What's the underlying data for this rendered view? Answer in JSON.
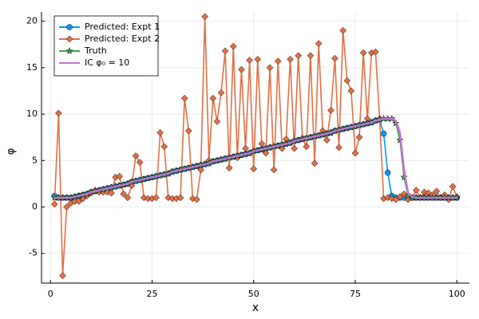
{
  "chart_data": {
    "type": "line",
    "x_label": "x",
    "y_label": "φ",
    "x": [
      1,
      2,
      3,
      4,
      5,
      6,
      7,
      8,
      9,
      10,
      11,
      12,
      13,
      14,
      15,
      16,
      17,
      18,
      19,
      20,
      21,
      22,
      23,
      24,
      25,
      26,
      27,
      28,
      29,
      30,
      31,
      32,
      33,
      34,
      35,
      36,
      37,
      38,
      39,
      40,
      41,
      42,
      43,
      44,
      45,
      46,
      47,
      48,
      49,
      50,
      51,
      52,
      53,
      54,
      55,
      56,
      57,
      58,
      59,
      60,
      61,
      62,
      63,
      64,
      65,
      66,
      67,
      68,
      69,
      70,
      71,
      72,
      73,
      74,
      75,
      76,
      77,
      78,
      79,
      80,
      81,
      82,
      83,
      84,
      85,
      86,
      87,
      88,
      89,
      90,
      91,
      92,
      93,
      94,
      95,
      96,
      97,
      98,
      99,
      100
    ],
    "series": [
      {
        "name": "Predicted: Expt 1",
        "color": "#009af9",
        "marker": "circle",
        "values": [
          1.2,
          1.0,
          1.0,
          1.0,
          1.0,
          1.1,
          1.2,
          1.3,
          1.4,
          1.6,
          1.7,
          1.8,
          1.9,
          2.0,
          2.1,
          2.2,
          2.3,
          2.4,
          2.5,
          2.7,
          2.8,
          2.9,
          3.0,
          3.1,
          3.2,
          3.3,
          3.4,
          3.5,
          3.6,
          3.8,
          3.9,
          4.0,
          4.1,
          4.2,
          4.3,
          4.4,
          4.5,
          4.6,
          4.7,
          4.9,
          5.0,
          5.1,
          5.2,
          5.3,
          5.4,
          5.5,
          5.6,
          5.7,
          5.8,
          6.0,
          6.1,
          6.2,
          6.3,
          6.4,
          6.5,
          6.6,
          6.7,
          6.8,
          6.9,
          7.1,
          7.2,
          7.3,
          7.4,
          7.5,
          7.6,
          7.7,
          7.8,
          7.9,
          8.0,
          8.2,
          8.3,
          8.4,
          8.5,
          8.6,
          8.7,
          8.8,
          8.9,
          9.0,
          9.1,
          9.3,
          9.4,
          7.9,
          3.7,
          1.2,
          1.0,
          1.0,
          1.0,
          1.0,
          1.0,
          1.0,
          1.0,
          1.0,
          1.0,
          1.0,
          1.0,
          1.0,
          1.0,
          1.0,
          1.0,
          1.0
        ]
      },
      {
        "name": "Predicted: Expt 2",
        "color": "#e26f46",
        "marker": "diamond",
        "values": [
          0.3,
          10.1,
          -7.4,
          0.0,
          0.4,
          0.6,
          0.6,
          0.9,
          1.2,
          1.5,
          1.8,
          1.6,
          1.6,
          1.6,
          1.5,
          3.2,
          3.3,
          1.4,
          1.0,
          2.3,
          5.5,
          4.8,
          1.0,
          0.9,
          0.9,
          1.0,
          8.0,
          6.5,
          1.0,
          0.9,
          0.9,
          1.0,
          11.7,
          8.2,
          0.9,
          0.8,
          4.0,
          20.5,
          5.0,
          11.7,
          9.2,
          12.3,
          16.8,
          4.2,
          17.3,
          5.3,
          14.8,
          6.3,
          15.8,
          4.1,
          15.9,
          6.8,
          5.8,
          15.0,
          4.0,
          15.7,
          6.3,
          7.3,
          15.9,
          6.3,
          16.3,
          7.4,
          6.5,
          16.3,
          4.7,
          17.6,
          8.2,
          7.2,
          10.4,
          16.0,
          6.4,
          19.0,
          13.6,
          12.5,
          5.8,
          7.5,
          16.6,
          9.5,
          16.6,
          16.7,
          9.5,
          0.9,
          1.0,
          0.9,
          0.8,
          1.1,
          1.4,
          0.8,
          1.0,
          1.8,
          1.0,
          1.6,
          1.5,
          1.3,
          1.7,
          1.0,
          1.3,
          0.8,
          2.2,
          1.1
        ]
      },
      {
        "name": "Truth",
        "color": "#3da44d",
        "marker": "star",
        "values": [
          1.0,
          1.0,
          1.0,
          1.0,
          1.0,
          1.1,
          1.2,
          1.3,
          1.4,
          1.6,
          1.7,
          1.8,
          1.9,
          2.0,
          2.1,
          2.2,
          2.3,
          2.4,
          2.5,
          2.7,
          2.8,
          2.9,
          3.0,
          3.1,
          3.2,
          3.3,
          3.4,
          3.5,
          3.6,
          3.8,
          3.9,
          4.0,
          4.1,
          4.2,
          4.3,
          4.4,
          4.5,
          4.6,
          4.7,
          4.9,
          5.0,
          5.1,
          5.2,
          5.3,
          5.4,
          5.5,
          5.6,
          5.7,
          5.8,
          6.0,
          6.1,
          6.2,
          6.3,
          6.4,
          6.5,
          6.6,
          6.7,
          6.8,
          6.9,
          7.1,
          7.2,
          7.3,
          7.4,
          7.5,
          7.6,
          7.7,
          7.8,
          7.9,
          8.0,
          8.2,
          8.3,
          8.4,
          8.5,
          8.6,
          8.7,
          8.8,
          8.9,
          9.0,
          9.1,
          9.3,
          9.4,
          9.5,
          9.5,
          9.5,
          9.0,
          7.2,
          3.2,
          1.2,
          1.0,
          1.0,
          1.0,
          1.0,
          1.0,
          1.0,
          1.0,
          1.0,
          1.0,
          1.0,
          1.0,
          1.0
        ]
      },
      {
        "name": "IC φ₀ = 10",
        "color": "#c271d2",
        "marker": "none",
        "values": [
          1.0,
          1.0,
          1.0,
          1.0,
          1.0,
          1.1,
          1.2,
          1.3,
          1.4,
          1.6,
          1.7,
          1.8,
          1.9,
          2.0,
          2.1,
          2.2,
          2.3,
          2.4,
          2.5,
          2.7,
          2.8,
          2.9,
          3.0,
          3.1,
          3.2,
          3.3,
          3.4,
          3.5,
          3.6,
          3.8,
          3.9,
          4.0,
          4.1,
          4.2,
          4.3,
          4.4,
          4.5,
          4.6,
          4.7,
          4.9,
          5.0,
          5.1,
          5.2,
          5.3,
          5.4,
          5.5,
          5.6,
          5.7,
          5.8,
          6.0,
          6.1,
          6.2,
          6.3,
          6.4,
          6.5,
          6.6,
          6.7,
          6.8,
          6.9,
          7.1,
          7.2,
          7.3,
          7.4,
          7.5,
          7.6,
          7.7,
          7.8,
          7.9,
          8.0,
          8.2,
          8.3,
          8.4,
          8.5,
          8.6,
          8.7,
          8.8,
          8.9,
          9.0,
          9.1,
          9.3,
          9.4,
          9.5,
          9.5,
          9.5,
          9.3,
          8.0,
          4.0,
          1.5,
          1.1,
          1.0,
          1.0,
          1.0,
          1.0,
          1.0,
          1.0,
          1.0,
          1.0,
          1.0,
          1.0,
          1.0
        ]
      }
    ],
    "xlim": [
      -2.2,
      103.1
    ],
    "ylim": [
      -8.2,
      21.0
    ],
    "xticks": [
      0,
      25,
      50,
      75,
      100
    ],
    "yticks": [
      -5,
      0,
      5,
      10,
      15,
      20
    ],
    "grid": true,
    "legend": "top-left"
  }
}
